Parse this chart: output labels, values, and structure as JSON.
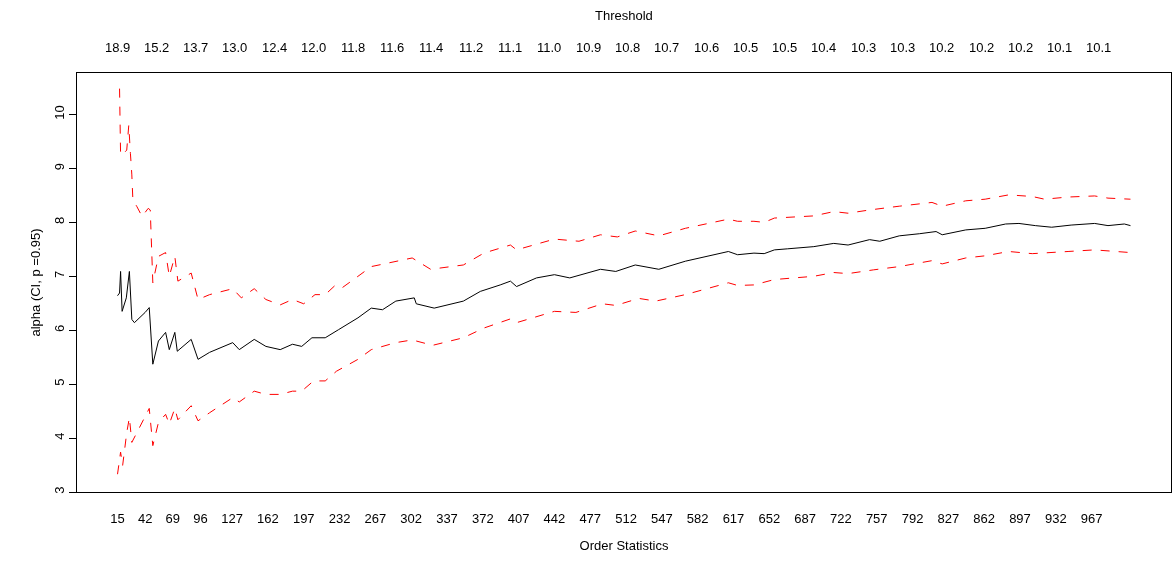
{
  "chart_data": {
    "type": "line",
    "xlabel": "Order Statistics",
    "ylabel": "alpha (CI, p =0.95)",
    "x2label": "Threshold",
    "xlim": [
      -24.6,
      1044.6
    ],
    "xticks": [
      15,
      42,
      69,
      96,
      127,
      162,
      197,
      232,
      267,
      302,
      337,
      372,
      407,
      442,
      477,
      512,
      547,
      582,
      617,
      652,
      687,
      722,
      757,
      792,
      827,
      862,
      897,
      932,
      967
    ],
    "annotations": [
      "18.9",
      "15.2",
      "13.7",
      "13.0",
      "12.4",
      "12.0",
      "11.8",
      "11.6",
      "11.4",
      "11.2",
      "11.1",
      "11.0",
      "10.9",
      "10.8",
      "10.7",
      "10.6",
      "10.5",
      "10.5",
      "10.4",
      "10.3",
      "10.3",
      "10.2",
      "10.2",
      "10.2",
      "10.1",
      "10.1"
    ],
    "ylim": [
      3.0,
      10.77
    ],
    "yticks": [
      3,
      4,
      5,
      6,
      7,
      8,
      9,
      10
    ],
    "series": [
      {
        "color": "#000000",
        "line_style": "solid",
        "x": [
          15,
          17,
          18,
          19.5,
          23.6,
          26.6,
          29,
          31.5,
          42,
          46,
          49.5,
          55,
          62,
          65.6,
          71,
          73.4,
          87,
          93.7,
          105,
          127.6,
          134,
          148.6,
          160,
          174,
          186,
          195,
          205,
          218,
          231,
          250,
          263,
          274,
          287,
          305,
          307,
          324.5,
          353,
          369.6,
          389,
          399,
          405,
          424.5,
          442,
          457,
          487,
          502,
          521,
          544,
          570,
          612,
          621,
          637,
          647,
          657,
          670,
          695.5,
          715,
          729,
          750,
          760,
          779,
          799,
          815,
          821,
          844,
          863,
          883,
          896,
          912,
          928,
          947,
          970,
          983,
          999,
          1005
        ],
        "values": [
          6.64,
          6.69,
          7.09,
          6.35,
          6.6,
          7.09,
          6.2,
          6.14,
          6.33,
          6.42,
          5.37,
          5.8,
          5.96,
          5.64,
          5.96,
          5.61,
          5.83,
          5.46,
          5.59,
          5.77,
          5.64,
          5.83,
          5.7,
          5.64,
          5.74,
          5.7,
          5.86,
          5.86,
          6.01,
          6.23,
          6.41,
          6.38,
          6.54,
          6.6,
          6.49,
          6.41,
          6.54,
          6.72,
          6.84,
          6.91,
          6.81,
          6.97,
          7.03,
          6.97,
          7.13,
          7.09,
          7.21,
          7.13,
          7.28,
          7.46,
          7.4,
          7.43,
          7.42,
          7.49,
          7.51,
          7.55,
          7.61,
          7.58,
          7.68,
          7.65,
          7.75,
          7.79,
          7.83,
          7.77,
          7.86,
          7.89,
          7.97,
          7.98,
          7.94,
          7.91,
          7.95,
          7.98,
          7.94,
          7.97,
          7.94
        ]
      },
      {
        "color": "#ff0000",
        "line_style": "dashed",
        "x": [
          17,
          18,
          21,
          24,
          26,
          27.6,
          29,
          30,
          34,
          39,
          45,
          47,
          49.5,
          55,
          62,
          65.6,
          71,
          74,
          87,
          93.7,
          105,
          127.6,
          136,
          148.6,
          160,
          174,
          186,
          197,
          208,
          218,
          227.6,
          234,
          250,
          263,
          303,
          321,
          353,
          373,
          399,
          405,
          442,
          466,
          487,
          503.5,
          521,
          544,
          570,
          612,
          621,
          637,
          647,
          657,
          695.5,
          715,
          729,
          750,
          779,
          811,
          821,
          844,
          863,
          886,
          909,
          921,
          944,
          970,
          983,
          1005
        ],
        "values": [
          10.48,
          9.25,
          9.28,
          9.34,
          9.8,
          9.28,
          8.88,
          8.42,
          8.29,
          8.11,
          8.26,
          8.23,
          6.88,
          7.37,
          7.44,
          7.0,
          7.37,
          6.91,
          7.06,
          6.57,
          6.66,
          6.77,
          6.6,
          6.77,
          6.57,
          6.47,
          6.57,
          6.49,
          6.66,
          6.66,
          6.83,
          6.78,
          7.0,
          7.18,
          7.34,
          7.13,
          7.21,
          7.43,
          7.58,
          7.49,
          7.69,
          7.65,
          7.77,
          7.73,
          7.84,
          7.75,
          7.89,
          8.06,
          8.02,
          8.02,
          8.0,
          8.08,
          8.12,
          8.2,
          8.17,
          8.23,
          8.3,
          8.37,
          8.3,
          8.4,
          8.43,
          8.51,
          8.48,
          8.43,
          8.47,
          8.49,
          8.45,
          8.43
        ]
      },
      {
        "color": "#ff0000",
        "line_style": "dashed",
        "x": [
          15,
          18,
          20,
          24,
          26.6,
          29,
          34.7,
          46,
          49.5,
          55,
          62,
          65.6,
          71,
          74,
          87,
          93.7,
          105,
          127.6,
          134,
          148.6,
          160,
          174,
          186,
          195,
          206.6,
          218,
          229,
          250,
          263,
          287,
          303,
          323,
          353,
          373,
          399,
          405,
          442,
          463,
          489,
          502,
          524.5,
          541,
          570,
          612,
          621,
          637,
          657,
          695.5,
          715,
          729,
          754,
          779,
          811,
          821,
          844,
          863,
          886,
          909,
          944,
          970,
          1005
        ],
        "values": [
          3.33,
          3.74,
          3.49,
          4.1,
          4.38,
          3.92,
          4.13,
          4.55,
          3.86,
          4.29,
          4.44,
          4.26,
          4.55,
          4.34,
          4.6,
          4.32,
          4.47,
          4.75,
          4.67,
          4.87,
          4.81,
          4.81,
          4.87,
          4.87,
          5.06,
          5.06,
          5.24,
          5.46,
          5.64,
          5.77,
          5.82,
          5.72,
          5.86,
          6.04,
          6.21,
          6.14,
          6.35,
          6.33,
          6.49,
          6.46,
          6.59,
          6.54,
          6.66,
          6.88,
          6.83,
          6.84,
          6.94,
          7.0,
          7.07,
          7.05,
          7.12,
          7.18,
          7.29,
          7.23,
          7.34,
          7.38,
          7.46,
          7.42,
          7.46,
          7.49,
          7.44
        ]
      }
    ]
  }
}
